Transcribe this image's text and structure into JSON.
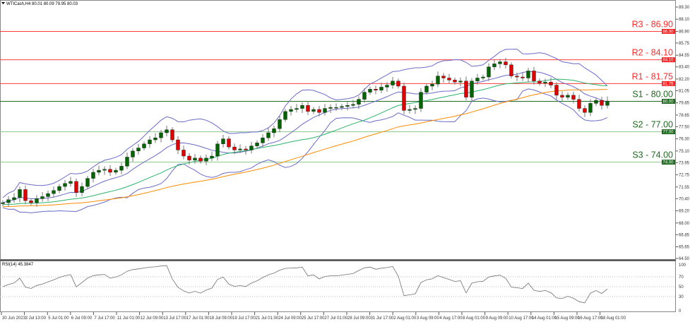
{
  "header": {
    "symbol_info": "WTICash,H4  80.01 80.09 79.95 80.03"
  },
  "rsi": {
    "label": "RSI(14) 45.3847",
    "levels": [
      70,
      50,
      30
    ],
    "axis_ticks": [
      "100",
      "70",
      "50",
      "30",
      "0"
    ]
  },
  "colors": {
    "bull": "#006400",
    "bear": "#e00000",
    "resistance": "#ff3c3c",
    "support_s1": "#1f6b1f",
    "support": "#8cc48c",
    "sma_fast": "#2db36b",
    "sma_slow": "#ff8c00",
    "bollinger": "#6b6bc8",
    "rsi": "#707070"
  },
  "chart_data": {
    "type": "candlestick",
    "title": "",
    "ylim": [
      64.5,
      89.3
    ],
    "y_ticks": [
      "89.30",
      "88.10",
      "86.90",
      "85.75",
      "84.55",
      "83.40",
      "82.20",
      "81.05",
      "79.85",
      "78.65",
      "77.50",
      "76.30",
      "75.10",
      "73.95",
      "72.75",
      "71.55",
      "70.40",
      "69.20",
      "68.00",
      "66.85",
      "65.65",
      "64.50"
    ],
    "x_ticks": [
      "30 Jun 2023",
      "3 Jul 13:00",
      "5 Jul 01:00",
      "6 Jul 09:00",
      "7 Jul 17:00",
      "11 Jul 01:00",
      "12 Jul 09:00",
      "13 Jul 17:00",
      "17 Jul 01:00",
      "18 Jul 09:00",
      "19 Jul 17:00",
      "21 Jul 01:00",
      "24 Jul 09:00",
      "25 Jul 17:00",
      "27 Jul 01:00",
      "28 Jul 09:00",
      "31 Jul 17:00",
      "2 Aug 01:00",
      "3 Aug 09:00",
      "4 Aug 17:00",
      "8 Aug 01:00",
      "9 Aug 09:00",
      "10 Aug 17:00",
      "14 Aug 01:00",
      "15 Aug 09:00",
      "16 Aug 17:00",
      "18 Aug 01:00"
    ],
    "closes": [
      70.0,
      70.3,
      70.5,
      71.3,
      70.2,
      70.0,
      70.4,
      70.6,
      70.9,
      71.2,
      71.6,
      71.9,
      72.1,
      71.0,
      71.6,
      72.4,
      73.0,
      73.2,
      73.3,
      73.0,
      73.2,
      73.6,
      74.5,
      75.1,
      75.4,
      75.8,
      76.2,
      76.4,
      76.9,
      77.2,
      76.2,
      75.2,
      74.6,
      74.2,
      74.4,
      74.1,
      74.4,
      74.6,
      75.8,
      76.3,
      75.5,
      75.2,
      75.3,
      75.2,
      75.6,
      75.9,
      76.4,
      76.9,
      77.3,
      78.2,
      79.0,
      79.2,
      79.3,
      79.6,
      79.0,
      79.2,
      78.9,
      79.3,
      79.4,
      79.4,
      79.5,
      79.6,
      79.7,
      80.2,
      80.9,
      81.2,
      81.1,
      81.4,
      81.6,
      82.0,
      81.5,
      79.1,
      79.2,
      79.3,
      80.9,
      81.5,
      81.7,
      82.5,
      82.3,
      82.1,
      81.9,
      82.0,
      80.4,
      82.0,
      82.3,
      82.4,
      83.4,
      83.7,
      83.9,
      83.6,
      82.5,
      82.4,
      82.3,
      83.0,
      82.0,
      81.8,
      81.9,
      81.6,
      80.6,
      80.4,
      80.6,
      80.2,
      79.3,
      78.9,
      79.8,
      80.1,
      79.6,
      80.03
    ],
    "levels": [
      {
        "name": "R3",
        "value": 86.9,
        "label": "R3 - 86.90",
        "tag": "86.90",
        "kind": "resistance"
      },
      {
        "name": "R2",
        "value": 84.1,
        "label": "R2 - 84.10",
        "tag": "84.10",
        "kind": "resistance"
      },
      {
        "name": "R1",
        "value": 81.75,
        "label": "R1 - 81.75",
        "tag": "81.75",
        "kind": "resistance"
      },
      {
        "name": "S1",
        "value": 80.0,
        "label": "S1 - 80.00",
        "tag": "80.00",
        "kind": "support_s1"
      },
      {
        "name": "S2",
        "value": 77.0,
        "label": "S2 - 77.00",
        "tag": "77.00",
        "kind": "support"
      },
      {
        "name": "S3",
        "value": 74.0,
        "label": "S3 - 74.00",
        "tag": "74.00",
        "kind": "support"
      }
    ]
  }
}
